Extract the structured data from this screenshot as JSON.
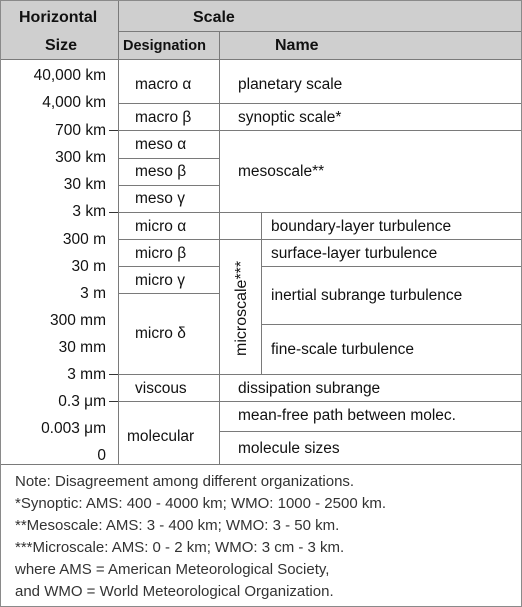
{
  "header": {
    "horizontal": "Horizontal",
    "size": "Size",
    "scale": "Scale",
    "designation": "Designation",
    "name": "Name"
  },
  "sizes": [
    "40,000 km",
    "4,000 km",
    "700 km",
    "300 km",
    "30 km",
    "3 km",
    "300 m",
    "30 m",
    "3 m",
    "300 mm",
    "30 mm",
    "3 mm",
    "0.3 μm",
    "0.003 μm",
    "0"
  ],
  "designations": {
    "macro_alpha": "macro α",
    "macro_beta": "macro β",
    "meso_alpha": "meso α",
    "meso_beta": "meso β",
    "meso_gamma": "meso γ",
    "micro_alpha": "micro α",
    "micro_beta": "micro β",
    "micro_gamma": "micro γ",
    "micro_delta": "micro δ",
    "viscous": "viscous",
    "molecular": "molecular"
  },
  "names": {
    "planetary": "planetary scale",
    "synoptic": "synoptic scale*",
    "mesoscale": "mesoscale**",
    "microscale": "microscale***",
    "boundary": "boundary-layer turbulence",
    "surface": "surface-layer turbulence",
    "inertial": "inertial subrange turbulence",
    "fine": "fine-scale turbulence",
    "dissipation": "dissipation subrange",
    "meanfree": "mean-free path between molec.",
    "molecule": "molecule sizes"
  },
  "notes": [
    "Note: Disagreement among different organizations.",
    "*Synoptic:  AMS: 400 - 4000 km;   WMO: 1000 - 2500 km.",
    "**Mesoscale:  AMS: 3 - 400 km;    WMO: 3 - 50 km.",
    "***Microscale:  AMS:  0 - 2 km;     WMO: 3 cm - 3 km.",
    "where AMS = American Meteorological Society,",
    "and WMO = World Meteorological Organization."
  ]
}
